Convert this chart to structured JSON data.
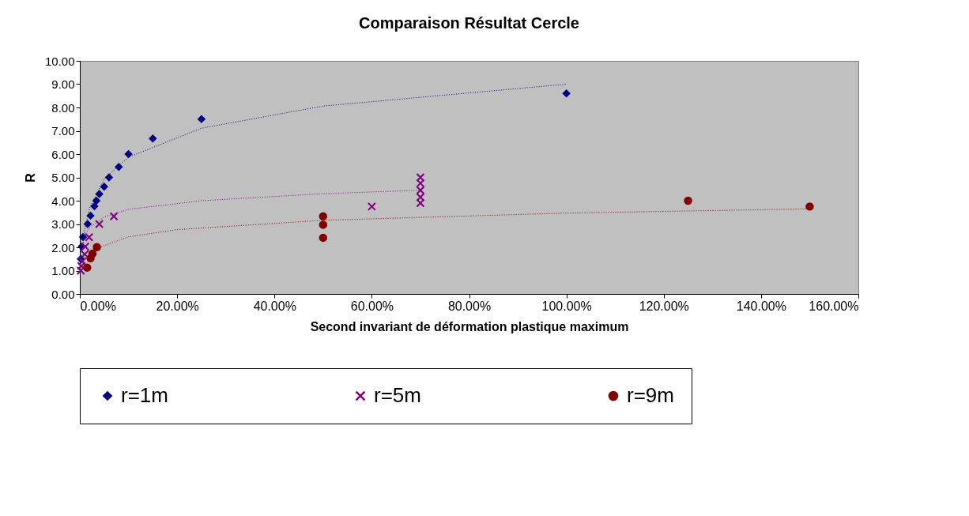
{
  "chart_data": {
    "type": "scatter",
    "title": "Comparaison Résultat Cercle",
    "xlabel": "Second invariant de déformation plastique maximum",
    "ylabel": "R",
    "xlim": [
      0,
      160
    ],
    "ylim": [
      0,
      10
    ],
    "xticks": [
      {
        "value": 0,
        "label": "0.00%"
      },
      {
        "value": 20,
        "label": "20.00%"
      },
      {
        "value": 40,
        "label": "40.00%"
      },
      {
        "value": 60,
        "label": "60.00%"
      },
      {
        "value": 80,
        "label": "80.00%"
      },
      {
        "value": 100,
        "label": "100.00%"
      },
      {
        "value": 120,
        "label": "120.00%"
      },
      {
        "value": 140,
        "label": "140.00%"
      },
      {
        "value": 160,
        "label": "160.00%"
      }
    ],
    "yticks": [
      {
        "value": 0,
        "label": "0.00"
      },
      {
        "value": 1,
        "label": "1.00"
      },
      {
        "value": 2,
        "label": "2.00"
      },
      {
        "value": 3,
        "label": "3.00"
      },
      {
        "value": 4,
        "label": "4.00"
      },
      {
        "value": 5,
        "label": "5.00"
      },
      {
        "value": 6,
        "label": "6.00"
      },
      {
        "value": 7,
        "label": "7.00"
      },
      {
        "value": 8,
        "label": "8.00"
      },
      {
        "value": 9,
        "label": "9.00"
      },
      {
        "value": 10,
        "label": "10.00"
      }
    ],
    "grid": false,
    "legend": "bottom",
    "series": [
      {
        "name": "r=1m",
        "color": "#000080",
        "marker": "diamond",
        "x": [
          0.2,
          0.4,
          0.65,
          1.6,
          2.2,
          3,
          3.4,
          4,
          5,
          6,
          8,
          10,
          15,
          25,
          100
        ],
        "values": [
          1.5,
          2.03,
          2.44,
          3.0,
          3.36,
          3.76,
          4.0,
          4.29,
          4.6,
          5.0,
          5.45,
          6.0,
          6.67,
          7.5,
          8.6
        ]
      },
      {
        "name": "r=5m",
        "color": "#800080",
        "marker": "cross",
        "x": [
          0.2,
          0.3,
          0.5,
          1,
          1.1,
          1.9,
          4,
          7,
          60,
          70,
          70,
          70,
          70,
          70
        ],
        "values": [
          1.0,
          1.2,
          1.4,
          1.7,
          2.03,
          2.43,
          3.0,
          3.33,
          3.75,
          5.0,
          4.75,
          4.45,
          4.15,
          3.9
        ]
      },
      {
        "name": "r=9m",
        "color": "#800000",
        "marker": "circle",
        "x": [
          1.5,
          2.2,
          2.6,
          3.5,
          50,
          50,
          50,
          125,
          150
        ],
        "values": [
          1.13,
          1.53,
          1.73,
          2.01,
          3.33,
          2.97,
          2.41,
          4.0,
          3.75
        ]
      },
      {
        "type": "line",
        "color": "#000080",
        "line_style": "dotted",
        "x": [
          0.5,
          1,
          2,
          5,
          10,
          25,
          50,
          100
        ],
        "values": [
          1.79,
          2.74,
          3.68,
          4.93,
          5.87,
          7.11,
          8.06,
          9.0
        ]
      },
      {
        "type": "line",
        "color": "#800080",
        "line_style": "dotted",
        "x": [
          1,
          2,
          5,
          10,
          25,
          50,
          70
        ],
        "values": [
          2.5,
          2.85,
          3.3,
          3.63,
          4.0,
          4.3,
          4.45
        ]
      },
      {
        "type": "line",
        "color": "#800000",
        "line_style": "dotted",
        "x": [
          3,
          10,
          20,
          50,
          100,
          150
        ],
        "values": [
          1.92,
          2.45,
          2.76,
          3.16,
          3.47,
          3.65
        ]
      }
    ]
  }
}
